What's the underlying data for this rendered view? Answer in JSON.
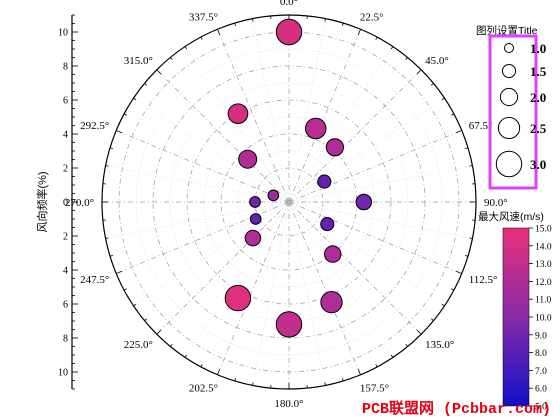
{
  "chart_data": {
    "type": "polar-bubble",
    "ylabel": "风向频率(%)",
    "radial_range": [
      0,
      11
    ],
    "radial_ticks": [
      0,
      2,
      4,
      6,
      8,
      10
    ],
    "angle_ticks": [
      "0.0°",
      "22.5°",
      "45.0°",
      "67.5°",
      "90.0°",
      "112.5°",
      "135.0°",
      "157.5°",
      "180.0°",
      "202.5°",
      "225.0°",
      "247.5°",
      "270.0°",
      "292.5°",
      "315.0°",
      "337.5°"
    ],
    "points": [
      {
        "angle": 0,
        "r": 10.0,
        "size": 3.0,
        "color_value": 14.0
      },
      {
        "angle": 20,
        "r": 4.6,
        "size": 2.4,
        "color_value": 12.5
      },
      {
        "angle": 40,
        "r": 4.2,
        "size": 2.0,
        "color_value": 12.0
      },
      {
        "angle": 60,
        "r": 2.4,
        "size": 1.5,
        "color_value": 8.5
      },
      {
        "angle": 90,
        "r": 4.4,
        "size": 1.8,
        "color_value": 9.0
      },
      {
        "angle": 120,
        "r": 2.6,
        "size": 1.5,
        "color_value": 8.5
      },
      {
        "angle": 140,
        "r": 4.0,
        "size": 1.9,
        "color_value": 12.0
      },
      {
        "angle": 157,
        "r": 6.4,
        "size": 2.5,
        "color_value": 12.0
      },
      {
        "angle": 180,
        "r": 7.2,
        "size": 3.0,
        "color_value": 13.0
      },
      {
        "angle": 208,
        "r": 6.4,
        "size": 3.0,
        "color_value": 14.5
      },
      {
        "angle": 225,
        "r": 3.0,
        "size": 1.8,
        "color_value": 12.0
      },
      {
        "angle": 243,
        "r": 2.2,
        "size": 1.2,
        "color_value": 8.5
      },
      {
        "angle": 270,
        "r": 2.0,
        "size": 1.2,
        "color_value": 9.0
      },
      {
        "angle": 293,
        "r": 1.0,
        "size": 1.2,
        "color_value": 11.0
      },
      {
        "angle": 316,
        "r": 3.5,
        "size": 2.1,
        "color_value": 12.0
      },
      {
        "angle": 330,
        "r": 6.0,
        "size": 2.3,
        "color_value": 14.0
      }
    ],
    "size_legend": {
      "title": "图列设置Title",
      "values": [
        1.0,
        1.5,
        2.0,
        2.5,
        3.0
      ],
      "labels": [
        "1.0",
        "1.5",
        "2.0",
        "2.5",
        "3.0"
      ],
      "frame_color": "#e040fb"
    },
    "colorbar": {
      "title": "最大风速(m/s)",
      "range": [
        5.0,
        15.0
      ],
      "tick_labels": [
        "15.0",
        "14.0",
        "13.0",
        "12.0",
        "11.0",
        "10.0",
        "9.0",
        "8.0",
        "7.0",
        "6.0",
        "5.0"
      ],
      "color_low": "#1010c8",
      "color_mid": "#8a2aa8",
      "color_high": "#e8307a"
    }
  },
  "watermark": "PCB联盟网 (Pcbbar.com)"
}
